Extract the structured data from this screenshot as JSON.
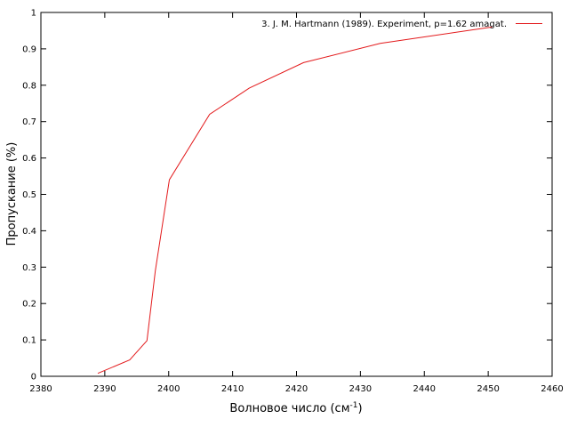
{
  "chart_data": {
    "type": "line",
    "xlabel": "Волновое число (см",
    "xlabel_sup": "-1",
    "xlabel_suffix": ")",
    "ylabel": "Пропускание (%)",
    "xlim": [
      2380,
      2460
    ],
    "ylim": [
      0,
      1
    ],
    "xticks": [
      2380,
      2390,
      2400,
      2410,
      2420,
      2430,
      2440,
      2450,
      2460
    ],
    "yticks": [
      0,
      0.1,
      0.2,
      0.3,
      0.4,
      0.5,
      0.6,
      0.7,
      0.8,
      0.9,
      1
    ],
    "ytick_labels": [
      "0",
      "0.1",
      "0.2",
      "0.3",
      "0.4",
      "0.5",
      "0.6",
      "0.7",
      "0.8",
      "0.9",
      "1"
    ],
    "grid": false,
    "legend_position": "top-right",
    "series": [
      {
        "name": "3. J. M. Hartmann (1989). Experiment, p=1.62 amagat.",
        "color": "#e31a1c",
        "x": [
          2388.9,
          2393.9,
          2396.6,
          2397.9,
          2400.1,
          2406.4,
          2412.6,
          2421.1,
          2433.1,
          2450.6
        ],
        "y": [
          0.008,
          0.045,
          0.098,
          0.29,
          0.54,
          0.72,
          0.792,
          0.862,
          0.915,
          0.96
        ]
      }
    ]
  }
}
